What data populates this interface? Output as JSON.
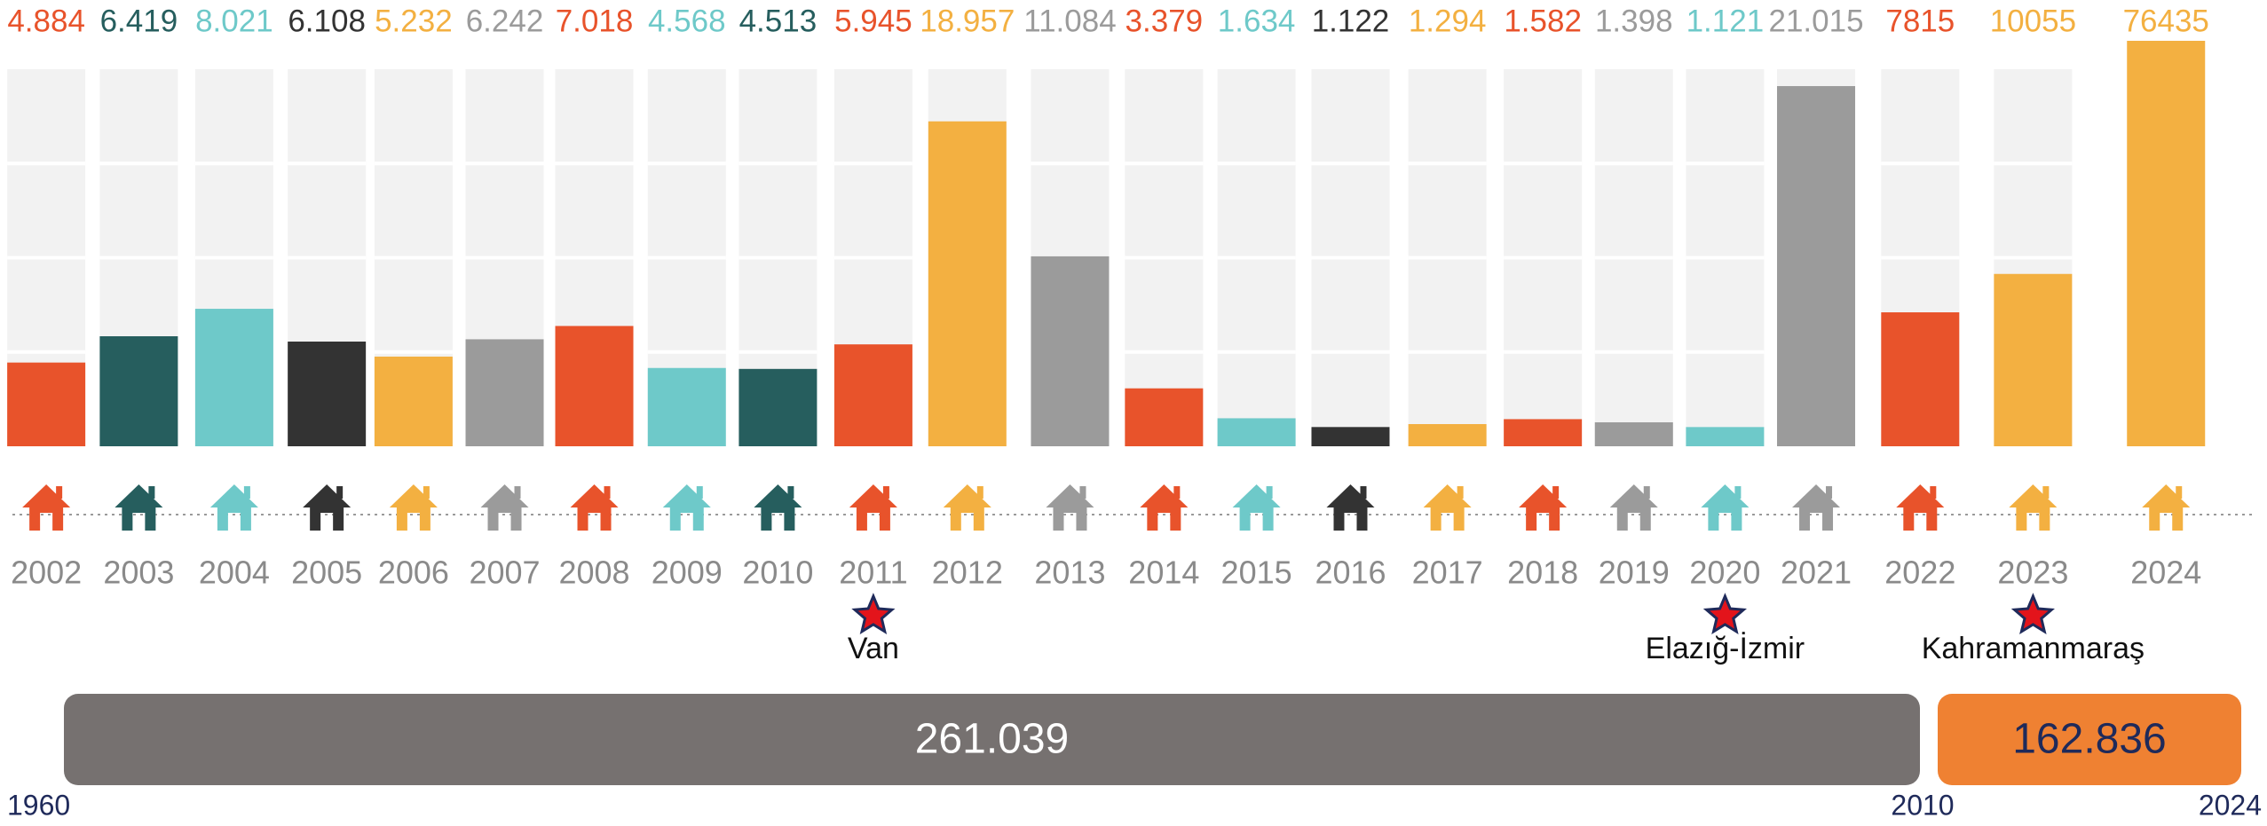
{
  "chart_data": {
    "type": "bar",
    "categories": [
      "2002",
      "2003",
      "2004",
      "2005",
      "2006",
      "2007",
      "2008",
      "2009",
      "2010",
      "2011",
      "2012",
      "2013",
      "2014",
      "2015",
      "2016",
      "2017",
      "2018",
      "2019",
      "2020",
      "2021",
      "2022",
      "2023",
      "2024"
    ],
    "values": [
      4884,
      6419,
      8021,
      6108,
      5232,
      6242,
      7018,
      4568,
      4513,
      5945,
      18957,
      11084,
      3379,
      1634,
      1122,
      1294,
      1582,
      1398,
      1121,
      21015,
      7815,
      10055,
      76435
    ],
    "value_labels": [
      "4.884",
      "6.419",
      "8.021",
      "6.108",
      "5.232",
      "6.242",
      "7.018",
      "4.568",
      "4.513",
      "5.945",
      "18.957",
      "11.084",
      "3.379",
      "1.634",
      "1.122",
      "1.294",
      "1.582",
      "1.398",
      "1.121",
      "21.015",
      "7815",
      "10055",
      "76435"
    ],
    "colors": [
      "#e8532b",
      "#265e5e",
      "#6ec9c9",
      "#333333",
      "#f3b041",
      "#9b9b9b",
      "#e8532b",
      "#6ec9c9",
      "#265e5e",
      "#e8532b",
      "#f3b041",
      "#9b9b9b",
      "#e8532b",
      "#6ec9c9",
      "#333333",
      "#f3b041",
      "#e8532b",
      "#9b9b9b",
      "#6ec9c9",
      "#9b9b9b",
      "#e8532b",
      "#f3b041",
      "#f3b041"
    ],
    "ylim": [
      0,
      22000
    ],
    "events": [
      {
        "year": "2011",
        "label": "Van"
      },
      {
        "year": "2020",
        "label": "Elazığ-İzmir"
      },
      {
        "year": "2023",
        "label": "Kahramanmaraş"
      }
    ],
    "period_labels": [
      "1960",
      "2010",
      "2024"
    ],
    "totals": [
      {
        "value": 261039,
        "value_label": "261.039",
        "color": "#767170",
        "text_color": "#ffffff"
      },
      {
        "value": 162836,
        "value_label": "162.836",
        "color": "#ef8132",
        "text_color": "#1f2a5a"
      }
    ]
  }
}
